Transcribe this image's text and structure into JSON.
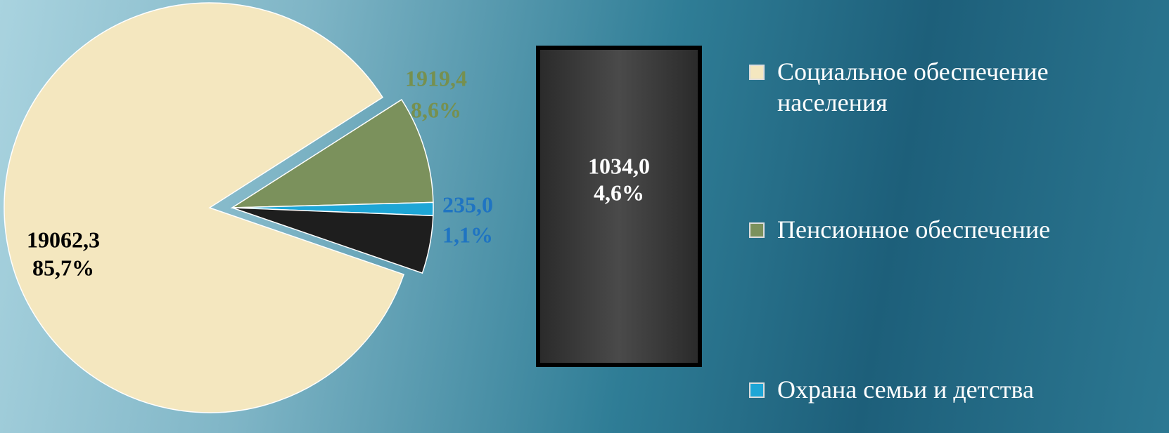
{
  "chart_data": {
    "type": "pie",
    "categories": [
      "Социальное обеспечение населения",
      "Пенсионное обеспечение",
      "Охрана семьи и детства",
      null
    ],
    "values": [
      19062.3,
      1919.4,
      235.0,
      1034.0
    ],
    "value_labels": [
      "19062,3",
      "1919,4",
      "235,0",
      "1034,0"
    ],
    "percents": [
      85.7,
      8.6,
      1.1,
      4.6
    ],
    "percent_labels": [
      "85,7%",
      "8,6%",
      "1,1%",
      "4,6%"
    ],
    "colors": [
      "#f4e7bf",
      "#7b915c",
      "#1ea6d6",
      "#1e1e1e"
    ],
    "label_colors": [
      "#000000",
      "#76904f",
      "#1f74c2",
      "#ffffff"
    ]
  }
}
